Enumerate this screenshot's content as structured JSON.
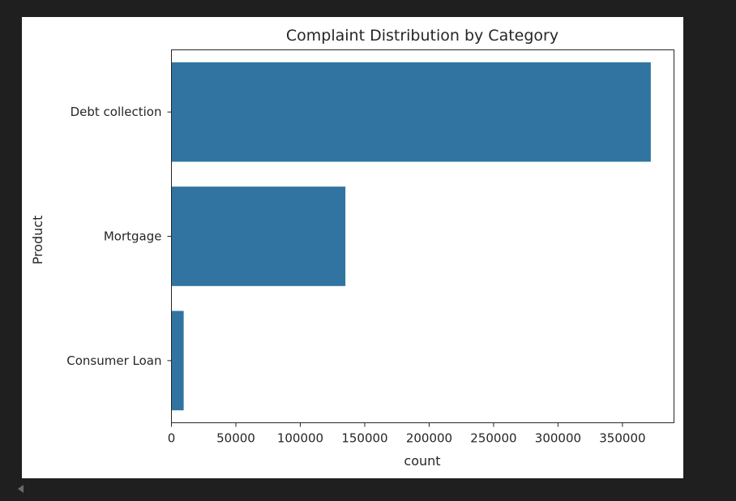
{
  "chart_data": {
    "type": "bar",
    "orientation": "horizontal",
    "title": "Complaint Distribution by Category",
    "xlabel": "count",
    "ylabel": "Product",
    "categories": [
      "Debt collection",
      "Mortgage",
      "Consumer Loan"
    ],
    "values": [
      372000,
      135000,
      9500
    ],
    "xlim": [
      0,
      390000
    ],
    "xticks": [
      0,
      50000,
      100000,
      150000,
      200000,
      250000,
      300000,
      350000
    ],
    "xtick_labels": [
      "0",
      "50000",
      "100000",
      "150000",
      "200000",
      "250000",
      "300000",
      "350000"
    ],
    "bar_color": "#3274a1",
    "grid": false
  }
}
